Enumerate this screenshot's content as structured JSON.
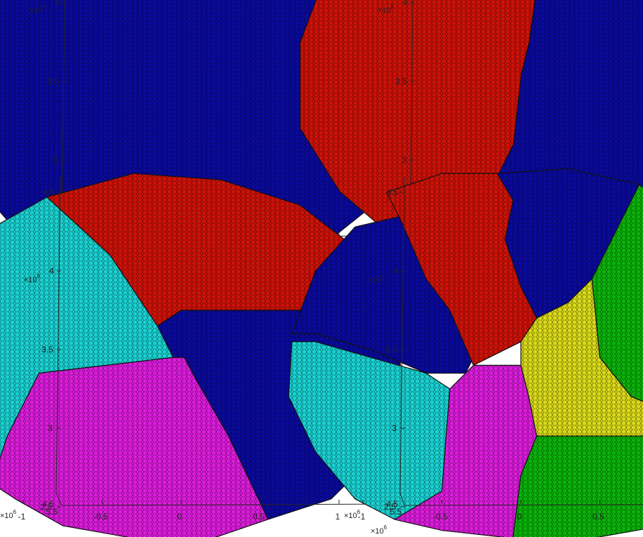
{
  "chart_data": [
    {
      "type": "scatter",
      "description_free": true,
      "x_ticks": [
        "-1",
        "-0.5",
        "0",
        "0.5",
        "1"
      ],
      "y_ticks": [
        "2.5",
        "3",
        "3.5",
        "4",
        "4.5"
      ],
      "z_ticks": [
        "4.5",
        "5.5"
      ],
      "x_exponent": "×10",
      "y_exponent": "×10",
      "z_exponent": "×10",
      "exponent_power": "6",
      "xlim": [
        -1.2,
        1.4
      ],
      "ylim": [
        2.25,
        4.65
      ],
      "clusters": [
        {
          "color": "#0a0aa0",
          "polygon": [
            [
              -0.45,
              4.63
            ],
            [
              0.05,
              4.65
            ],
            [
              0.6,
              4.52
            ],
            [
              1.05,
              4.2
            ],
            [
              1.35,
              3.75
            ],
            [
              1.38,
              3.2
            ],
            [
              1.2,
              2.7
            ],
            [
              0.95,
              2.5
            ],
            [
              0.5,
              2.35
            ],
            [
              0.0,
              2.3
            ],
            [
              -0.6,
              2.33
            ],
            [
              -1.0,
              2.5
            ],
            [
              -1.3,
              2.85
            ],
            [
              -1.45,
              3.35
            ],
            [
              -1.4,
              3.9
            ],
            [
              -1.15,
              4.3
            ],
            [
              -0.8,
              4.53
            ]
          ]
        }
      ]
    },
    {
      "type": "scatter",
      "x_ticks": [
        "-1",
        "-0.5",
        "0",
        "0.5",
        "1"
      ],
      "y_ticks": [
        "2.5",
        "3",
        "3.5",
        "4",
        "4.5"
      ],
      "z_ticks": [
        "4.5",
        "5.5"
      ],
      "x_exponent": "×10",
      "y_exponent": "×10",
      "z_exponent": "×10",
      "exponent_power": "6",
      "xlim": [
        -1.2,
        1.4
      ],
      "ylim": [
        2.25,
        4.65
      ],
      "clusters": [
        {
          "color": "#d01208",
          "polygon": [
            [
              -0.5,
              4.55
            ],
            [
              0.05,
              4.7
            ],
            [
              0.1,
              4.55
            ],
            [
              0.08,
              4.35
            ],
            [
              0.0,
              3.75
            ],
            [
              -0.05,
              3.55
            ],
            [
              -0.1,
              3.1
            ],
            [
              -0.25,
              2.8
            ],
            [
              -0.45,
              2.35
            ],
            [
              -0.85,
              2.5
            ],
            [
              -1.2,
              2.8
            ],
            [
              -1.45,
              3.2
            ],
            [
              -1.45,
              3.75
            ],
            [
              -1.3,
              4.15
            ],
            [
              -0.95,
              4.42
            ]
          ]
        },
        {
          "color": "#0a0aa0",
          "polygon": [
            [
              0.05,
              4.7
            ],
            [
              0.55,
              4.62
            ],
            [
              1.0,
              4.35
            ],
            [
              1.3,
              3.95
            ],
            [
              1.42,
              3.45
            ],
            [
              1.3,
              2.9
            ],
            [
              1.0,
              2.55
            ],
            [
              0.55,
              2.35
            ],
            [
              0.0,
              2.3
            ],
            [
              -0.45,
              2.35
            ],
            [
              -0.25,
              2.8
            ],
            [
              -0.1,
              3.1
            ],
            [
              -0.05,
              3.55
            ],
            [
              0.0,
              3.75
            ],
            [
              0.08,
              4.35
            ],
            [
              0.1,
              4.55
            ]
          ]
        }
      ]
    },
    {
      "type": "scatter",
      "x_ticks": [
        "-1",
        "-0.5",
        "0",
        "0.5",
        "1"
      ],
      "y_ticks": [
        "2.5",
        "3",
        "3.5",
        "4",
        "4.5"
      ],
      "z_ticks": [
        "4.5",
        "5.5"
      ],
      "x_exponent": "×10",
      "y_exponent": "×10",
      "z_exponent": "×10",
      "exponent_power": "6",
      "xlim": [
        -1.2,
        1.4
      ],
      "ylim": [
        2.25,
        4.65
      ],
      "clusters": [
        {
          "color": "#d01208",
          "polygon": [
            [
              -0.85,
              4.47
            ],
            [
              -0.3,
              4.62
            ],
            [
              0.25,
              4.58
            ],
            [
              0.75,
              4.42
            ],
            [
              1.1,
              4.15
            ],
            [
              1.35,
              3.75
            ],
            [
              0.0,
              3.75
            ],
            [
              -0.15,
              3.65
            ],
            [
              -0.45,
              4.1
            ]
          ]
        },
        {
          "color": "#1ad2d2",
          "polygon": [
            [
              -0.85,
              4.47
            ],
            [
              -0.45,
              4.1
            ],
            [
              -0.15,
              3.65
            ],
            [
              -0.05,
              3.45
            ],
            [
              -0.9,
              3.35
            ],
            [
              -1.1,
              2.95
            ],
            [
              -1.2,
              2.65
            ],
            [
              -1.35,
              2.95
            ],
            [
              -1.48,
              3.45
            ],
            [
              -1.4,
              3.95
            ],
            [
              -1.15,
              4.3
            ]
          ]
        },
        {
          "color": "#0a0aa0",
          "polygon": [
            [
              0.0,
              3.75
            ],
            [
              1.35,
              3.75
            ],
            [
              1.4,
              3.3
            ],
            [
              1.25,
              2.85
            ],
            [
              0.95,
              2.55
            ],
            [
              0.55,
              2.42
            ],
            [
              0.3,
              2.95
            ],
            [
              0.1,
              3.3
            ],
            [
              0.02,
              3.45
            ],
            [
              -0.05,
              3.45
            ],
            [
              -0.15,
              3.65
            ]
          ]
        },
        {
          "color": "#de1cde",
          "polygon": [
            [
              -0.9,
              3.35
            ],
            [
              -0.05,
              3.45
            ],
            [
              0.02,
              3.45
            ],
            [
              0.1,
              3.3
            ],
            [
              0.3,
              2.95
            ],
            [
              0.55,
              2.42
            ],
            [
              0.2,
              2.3
            ],
            [
              -0.3,
              2.3
            ],
            [
              -0.75,
              2.38
            ],
            [
              -1.05,
              2.55
            ],
            [
              -1.2,
              2.65
            ],
            [
              -1.1,
              2.95
            ]
          ]
        }
      ]
    },
    {
      "type": "scatter",
      "x_ticks": [
        "-1",
        "-0.5",
        "0",
        "0.5",
        "1"
      ],
      "y_ticks": [
        "2.5",
        "3",
        "3.5",
        "4",
        "4.5"
      ],
      "z_ticks": [
        "4.5",
        "5.5"
      ],
      "x_exponent": "×10",
      "y_exponent": "×10",
      "z_exponent": "×10",
      "exponent_power": "6",
      "xlim": [
        -1.2,
        1.4
      ],
      "ylim": [
        2.25,
        4.65
      ],
      "clusters": [
        {
          "color": "#0a0aa0",
          "polygon": [
            [
              -1.45,
              3.6
            ],
            [
              -1.3,
              4.0
            ],
            [
              -1.05,
              4.28
            ],
            [
              -0.75,
              4.35
            ],
            [
              -0.45,
              4.1
            ],
            [
              -0.3,
              3.65
            ],
            [
              -0.25,
              3.55
            ],
            [
              -0.35,
              3.35
            ],
            [
              -0.6,
              3.35
            ],
            [
              -0.95,
              3.5
            ],
            [
              -1.3,
              3.6
            ]
          ]
        },
        {
          "color": "#d01208",
          "polygon": [
            [
              -0.85,
              4.5
            ],
            [
              -0.5,
              4.62
            ],
            [
              -0.15,
              4.62
            ],
            [
              -0.05,
              4.45
            ],
            [
              -0.1,
              4.2
            ],
            [
              0.0,
              3.9
            ],
            [
              0.1,
              3.7
            ],
            [
              0.0,
              3.55
            ],
            [
              -0.3,
              3.4
            ],
            [
              -0.45,
              3.75
            ],
            [
              -0.6,
              3.95
            ],
            [
              -0.75,
              4.3
            ]
          ]
        },
        {
          "color": "#0a0aa0",
          "polygon": [
            [
              -0.15,
              4.62
            ],
            [
              0.3,
              4.65
            ],
            [
              0.75,
              4.55
            ],
            [
              0.45,
              3.95
            ],
            [
              0.3,
              3.8
            ],
            [
              0.1,
              3.7
            ],
            [
              0.0,
              3.9
            ],
            [
              -0.1,
              4.2
            ],
            [
              -0.05,
              4.45
            ]
          ]
        },
        {
          "color": "#1ad2d2",
          "polygon": [
            [
              -1.45,
              3.55
            ],
            [
              -1.3,
              3.55
            ],
            [
              -0.95,
              3.45
            ],
            [
              -0.6,
              3.35
            ],
            [
              -0.45,
              3.25
            ],
            [
              -0.5,
              2.6
            ],
            [
              -0.8,
              2.42
            ],
            [
              -1.05,
              2.55
            ],
            [
              -1.3,
              2.85
            ],
            [
              -1.47,
              3.2
            ]
          ]
        },
        {
          "color": "#de1cde",
          "polygon": [
            [
              -0.45,
              3.25
            ],
            [
              -0.3,
              3.4
            ],
            [
              0.0,
              3.4
            ],
            [
              0.05,
              3.2
            ],
            [
              0.1,
              2.95
            ],
            [
              0.0,
              2.7
            ],
            [
              -0.05,
              2.3
            ],
            [
              -0.5,
              2.35
            ],
            [
              -0.8,
              2.42
            ],
            [
              -0.5,
              2.6
            ]
          ]
        },
        {
          "color": "#0ab40a",
          "polygon": [
            [
              0.75,
              4.55
            ],
            [
              1.05,
              4.3
            ],
            [
              1.35,
              3.9
            ],
            [
              1.45,
              3.4
            ],
            [
              1.4,
              3.05
            ],
            [
              1.2,
              3.05
            ],
            [
              0.95,
              3.1
            ],
            [
              0.7,
              3.2
            ],
            [
              0.5,
              3.45
            ],
            [
              0.45,
              3.95
            ]
          ]
        },
        {
          "color": "#dada1a",
          "polygon": [
            [
              0.1,
              3.7
            ],
            [
              0.3,
              3.8
            ],
            [
              0.45,
              3.95
            ],
            [
              0.5,
              3.45
            ],
            [
              0.7,
              3.2
            ],
            [
              0.95,
              3.1
            ],
            [
              1.2,
              3.05
            ],
            [
              1.4,
              3.05
            ],
            [
              1.3,
              2.9
            ],
            [
              0.9,
              2.95
            ],
            [
              0.45,
              2.95
            ],
            [
              0.1,
              2.95
            ],
            [
              0.05,
              3.2
            ],
            [
              0.0,
              3.4
            ],
            [
              0.0,
              3.55
            ]
          ]
        },
        {
          "color": "#0ab40a",
          "polygon": [
            [
              0.1,
              2.95
            ],
            [
              0.45,
              2.95
            ],
            [
              0.9,
              2.95
            ],
            [
              1.3,
              2.9
            ],
            [
              1.2,
              2.6
            ],
            [
              0.9,
              2.38
            ],
            [
              0.45,
              2.3
            ],
            [
              -0.05,
              2.3
            ],
            [
              0.0,
              2.7
            ]
          ]
        }
      ]
    }
  ]
}
